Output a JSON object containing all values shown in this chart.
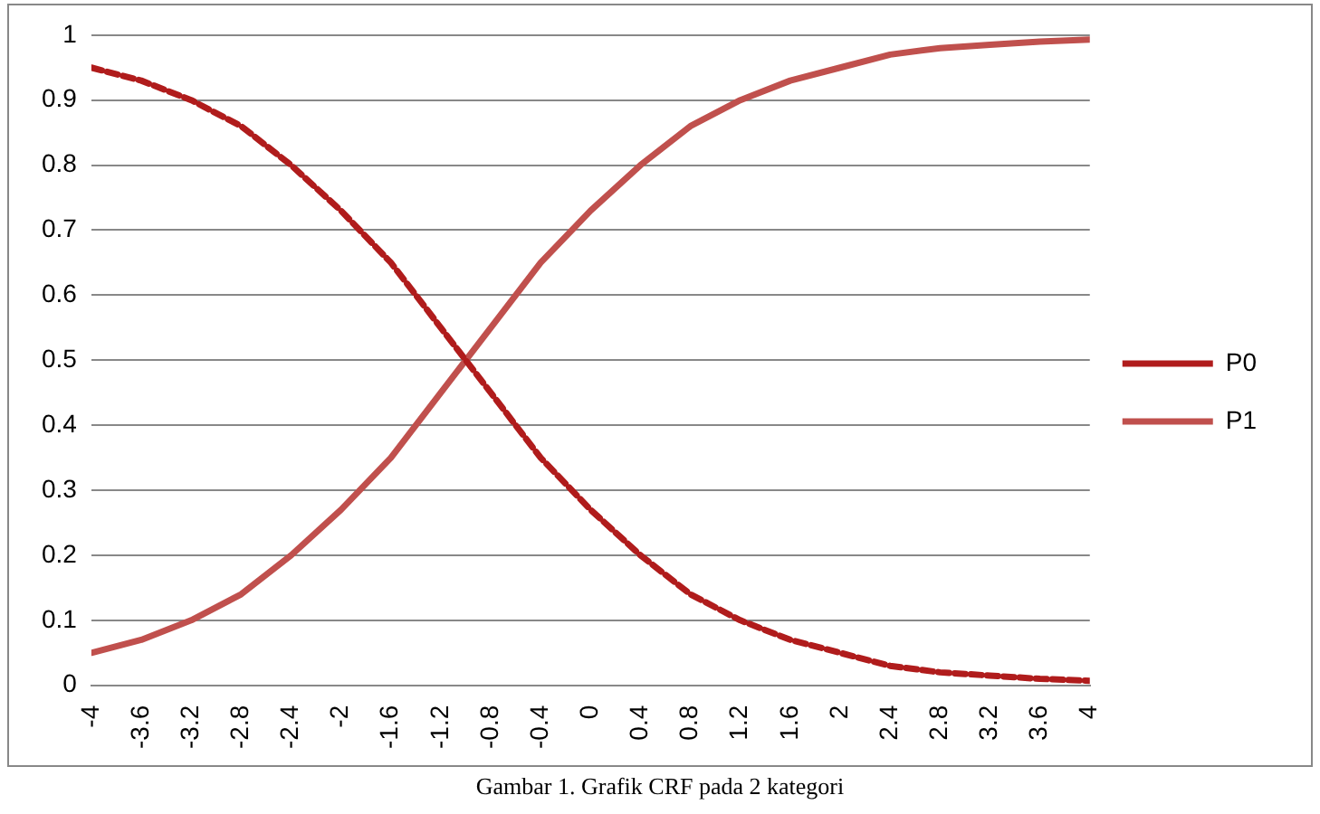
{
  "chart_data": {
    "type": "line",
    "x": [
      -4,
      -3.6,
      -3.2,
      -2.8,
      -2.4,
      -2,
      -1.6,
      -1.2,
      -0.8,
      -0.4,
      0,
      0.4,
      0.8,
      1.2,
      1.6,
      2,
      2.4,
      2.8,
      3.2,
      3.6,
      4
    ],
    "series": [
      {
        "name": "P0",
        "color": "#b01c1c",
        "line_style": "dashed",
        "values": [
          0.95,
          0.93,
          0.9,
          0.86,
          0.8,
          0.73,
          0.65,
          0.55,
          0.45,
          0.35,
          0.27,
          0.2,
          0.14,
          0.1,
          0.07,
          0.05,
          0.03,
          0.02,
          0.015,
          0.01,
          0.007
        ]
      },
      {
        "name": "P1",
        "color": "#c0504d",
        "line_style": "solid",
        "values": [
          0.05,
          0.07,
          0.1,
          0.14,
          0.2,
          0.27,
          0.35,
          0.45,
          0.55,
          0.65,
          0.73,
          0.8,
          0.86,
          0.9,
          0.93,
          0.95,
          0.97,
          0.98,
          0.985,
          0.99,
          0.993
        ]
      }
    ],
    "xlim": [
      -4,
      4
    ],
    "xticks": [
      -4,
      -3.6,
      -3.2,
      -2.8,
      -2.4,
      -2,
      -1.6,
      -1.2,
      -0.8,
      -0.4,
      0,
      0.4,
      0.8,
      1.2,
      1.6,
      2,
      2.4,
      2.8,
      3.2,
      3.6,
      4
    ],
    "ylim": [
      0,
      1
    ],
    "yticks": [
      0,
      0.1,
      0.2,
      0.3,
      0.4,
      0.5,
      0.6,
      0.7,
      0.8,
      0.9,
      1
    ],
    "grid": "y",
    "legend": "right",
    "marker": "none",
    "annotations": [
      "Gambar 1. Grafik CRF pada 2 kategori"
    ]
  }
}
